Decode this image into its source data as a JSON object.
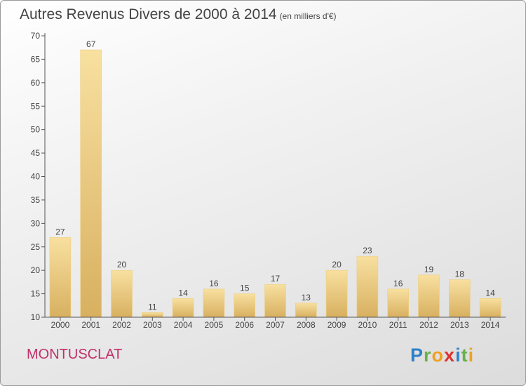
{
  "chart_data": {
    "type": "bar",
    "title": "Autres Revenus Divers de 2000 à 2014",
    "subtitle": "(en milliers d'€)",
    "categories": [
      "2000",
      "2001",
      "2002",
      "2003",
      "2004",
      "2005",
      "2006",
      "2007",
      "2008",
      "2009",
      "2010",
      "2011",
      "2012",
      "2013",
      "2014"
    ],
    "values": [
      27,
      67,
      20,
      11,
      14,
      16,
      15,
      17,
      13,
      20,
      23,
      16,
      19,
      18,
      14
    ],
    "ylim": [
      10,
      70
    ],
    "yticks": [
      10,
      15,
      20,
      25,
      30,
      35,
      40,
      45,
      50,
      55,
      60,
      65,
      70
    ],
    "grid": false,
    "colors": {
      "bar_light": "#f8e0a0",
      "bar_dark": "#d8b060",
      "axis": "#555555",
      "text": "#444444"
    }
  },
  "location": "MONTUSCLAT",
  "logo": {
    "text": "Proxiti"
  }
}
